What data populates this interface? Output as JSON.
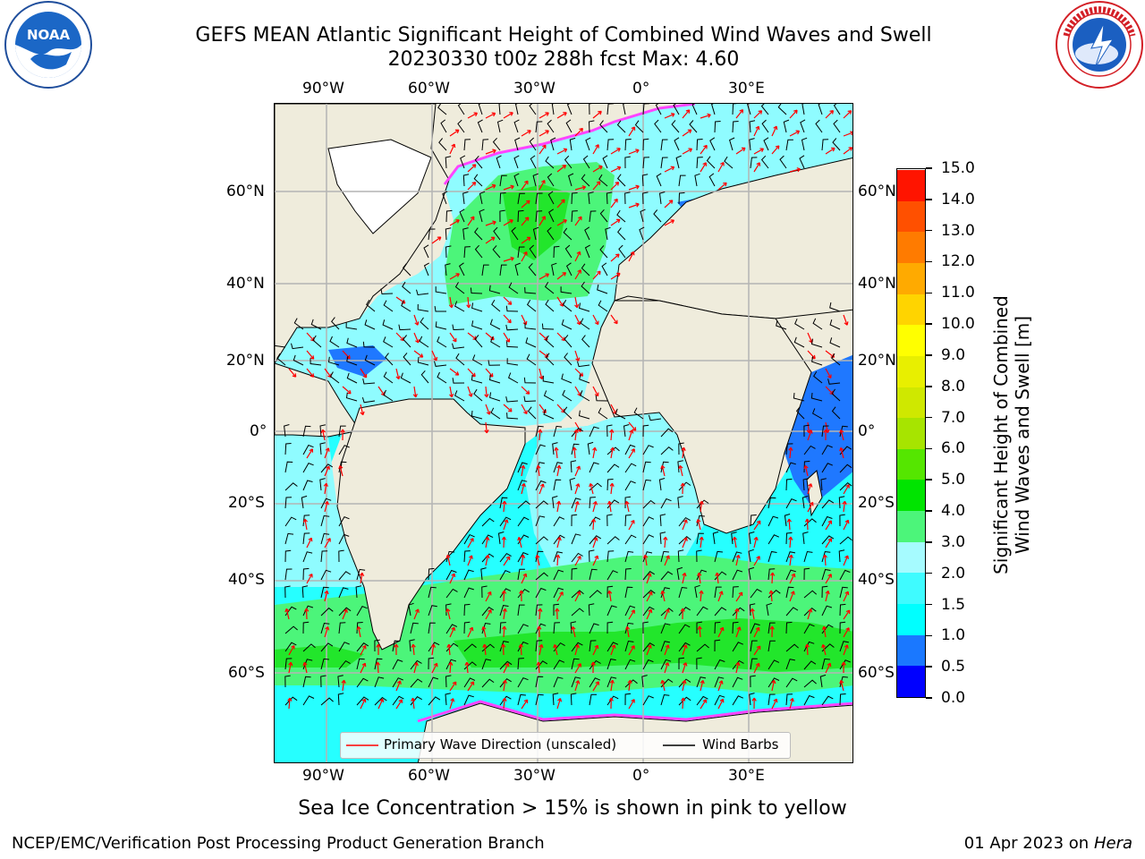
{
  "header": {
    "title_line1": "GEFS MEAN Atlantic Significant Height of Combined Wind Waves and Swell",
    "title_line2": "20230330 t00z 288h fcst   Max: 4.60"
  },
  "logos": {
    "left": {
      "text": "NOAA",
      "ring_text": "NATIONAL OCEANIC AND ATMOSPHERIC ADMINISTRATION · U.S. DEPARTMENT OF COMMERCE"
    },
    "right": {
      "ring_text": "NATIONAL WEATHER SERVICE"
    }
  },
  "map": {
    "lon_labels": [
      "90°W",
      "60°W",
      "30°W",
      "0°",
      "30°E"
    ],
    "lat_labels_left": [
      "60°N",
      "40°N",
      "20°N",
      "0°",
      "20°S",
      "40°S",
      "60°S"
    ],
    "lat_labels_right": [
      "60°N",
      "40°N",
      "20°N",
      "0°",
      "20°S",
      "40°S",
      "60°S"
    ],
    "colors": {
      "land": "#efecdc",
      "ocean_low": "#8ffcff",
      "ocean_mid": "#26ffff",
      "wave_high": "#4cf57a",
      "wave_higher": "#22e62b",
      "shallow": "#1f78ff",
      "ice_edge": "#ff44ff",
      "wave_arrow": "#ff0000",
      "wind_barb": "#000000",
      "grid": "#b4b4b4"
    }
  },
  "legend": {
    "wave_direction": "Primary Wave Direction (unscaled)",
    "wind_barbs": "Wind Barbs"
  },
  "colorbar": {
    "title_line1": "Significant Height of Combined",
    "title_line2": "Wind Waves and Swell [m]",
    "ticks": [
      "0.0",
      "0.5",
      "1.0",
      "1.5",
      "2.0",
      "3.0",
      "4.0",
      "5.0",
      "6.0",
      "7.0",
      "8.0",
      "9.0",
      "10.0",
      "11.0",
      "12.0",
      "13.0",
      "14.0",
      "15.0"
    ],
    "colors": [
      "#0000ff",
      "#1a78ff",
      "#00ffff",
      "#3ffbff",
      "#a6fbff",
      "#4cf57a",
      "#00e400",
      "#55e600",
      "#a7e400",
      "#cfe800",
      "#e8ef00",
      "#ffff00",
      "#ffd400",
      "#ffaa00",
      "#ff7b00",
      "#ff5000",
      "#ff1400"
    ]
  },
  "caption": "Sea Ice Concentration > 15% is shown in pink to yellow",
  "footer": {
    "left": "NCEP/EMC/Verification Post Processing Product Generation Branch",
    "right_prefix": "01 Apr 2023 on ",
    "right_host": "Hera"
  }
}
